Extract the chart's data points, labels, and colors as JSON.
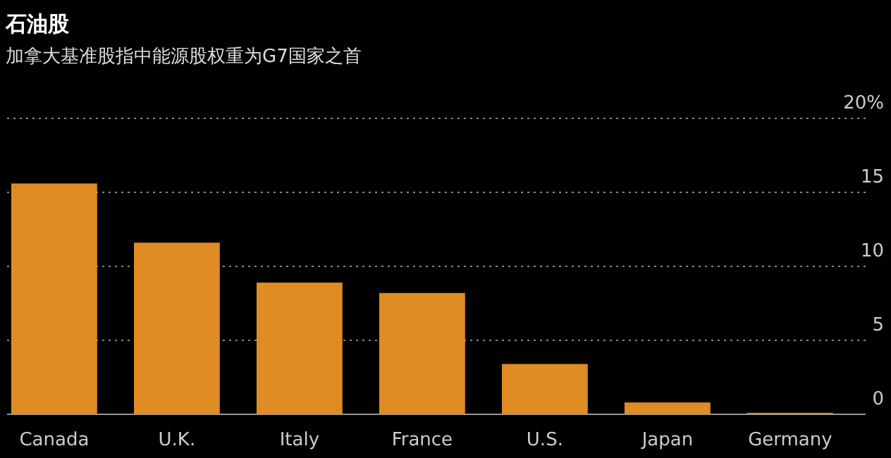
{
  "chart_data": {
    "type": "bar",
    "title": "石油股",
    "subtitle": "加拿大基准股指中能源股权重为G7国家之首",
    "categories": [
      "Canada",
      "U.K.",
      "Italy",
      "France",
      "U.S.",
      "Japan",
      "Germany"
    ],
    "values": [
      15.6,
      11.6,
      8.9,
      8.2,
      3.4,
      0.8,
      0.1
    ],
    "color": "#e08c24",
    "ylim": [
      0,
      20
    ],
    "yticks": [
      0,
      5,
      10,
      15,
      {
        "value": 20,
        "label": "20%"
      }
    ],
    "grid": "y"
  }
}
